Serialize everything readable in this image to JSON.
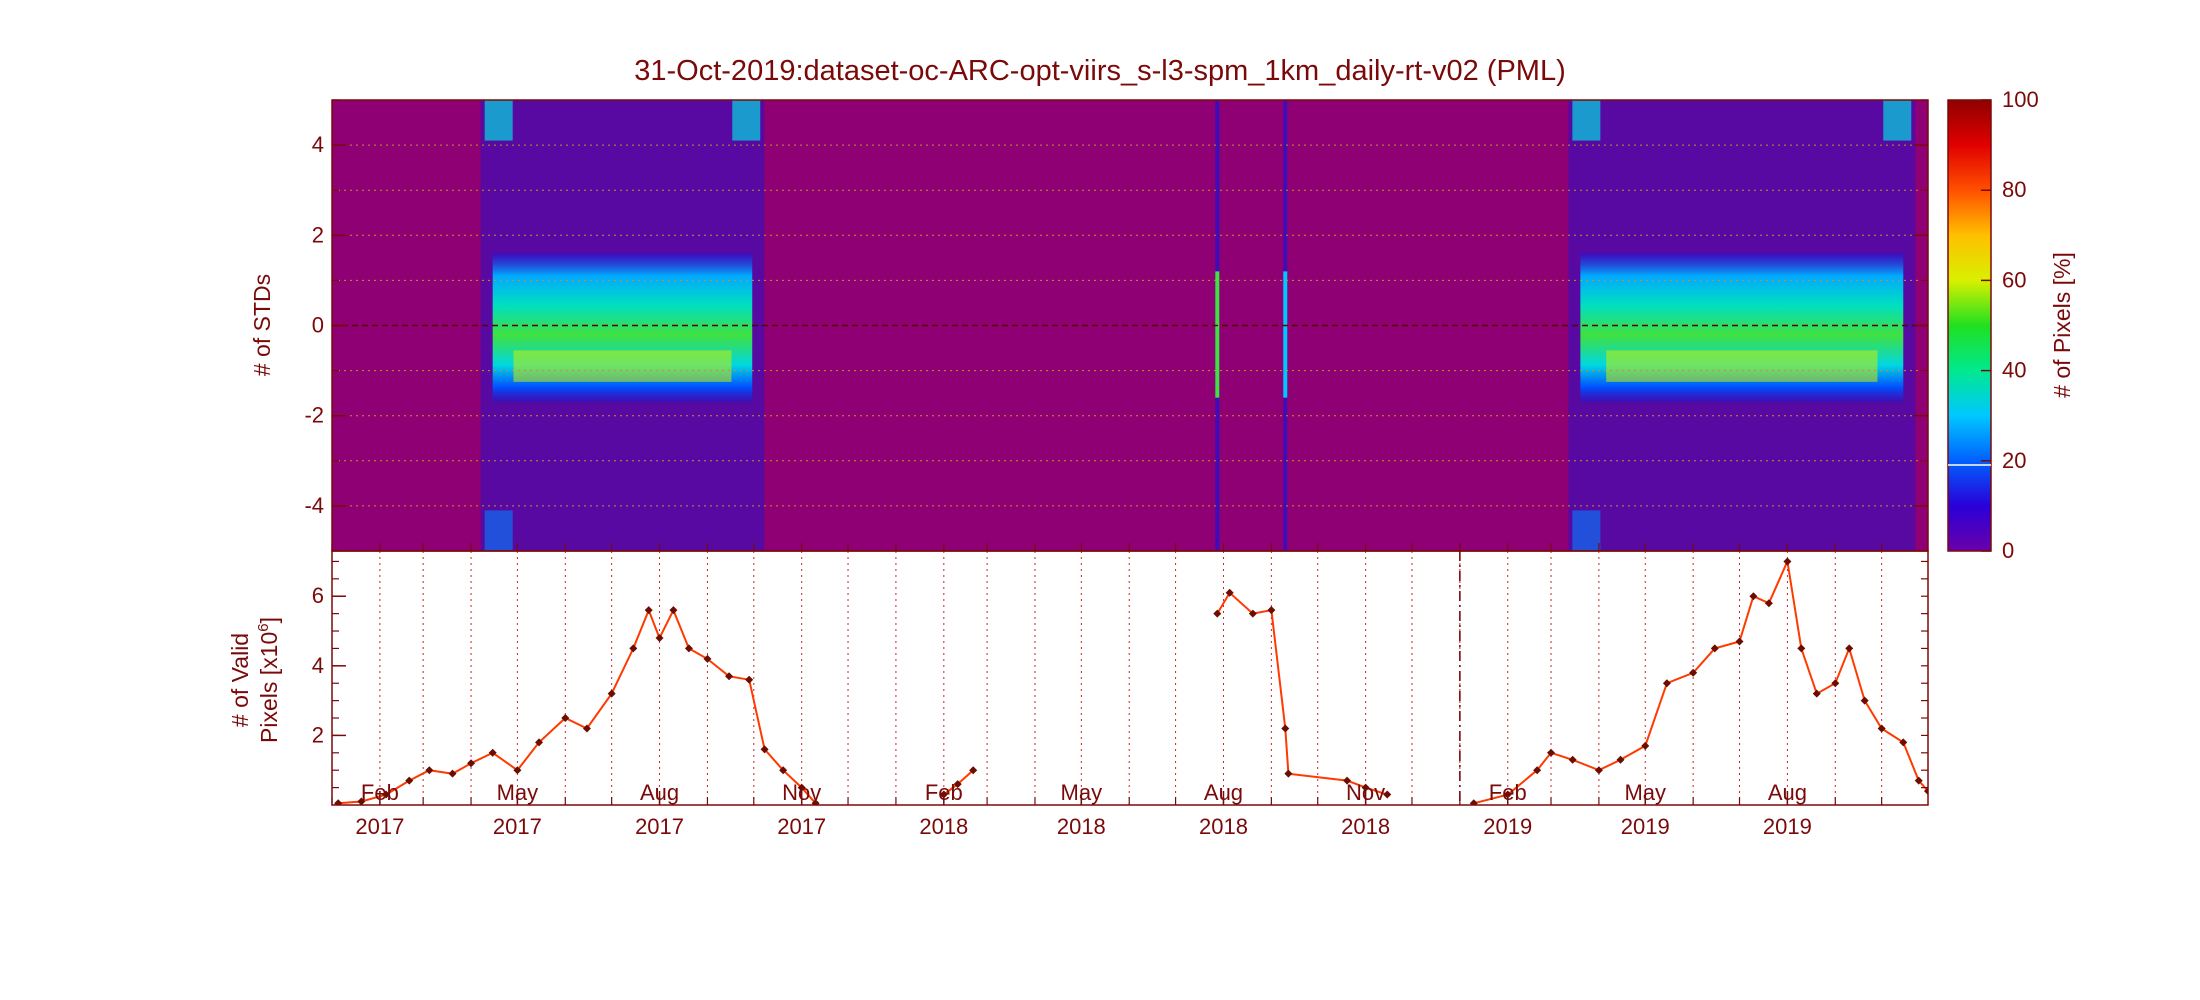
{
  "title": "31-Oct-2019:dataset-oc-ARC-opt-viirs_s-l3-spm_1km_daily-rt-v02 (PML)",
  "colors": {
    "text": "#7a0a0a",
    "background_fill": "#8e0073",
    "series_line": "#ff3a00",
    "series_marker": "#6b0d00",
    "guide_line": "#c8262a"
  },
  "chart_data": [
    {
      "type": "heatmap",
      "ylabel": "# of STDs",
      "ylim": [
        -5,
        5
      ],
      "yticks": [
        -4,
        -2,
        0,
        2,
        4
      ],
      "x_range": [
        "2017-01-01",
        "2019-10-31"
      ],
      "colorbar": {
        "label": "# of Pixels [%]",
        "range": [
          0,
          100
        ],
        "ticks": [
          0,
          20,
          40,
          60,
          80,
          100
        ],
        "colormap": "rainbow"
      },
      "mean_line_y": 0,
      "high_density_periods": [
        {
          "start": "2017-04-15",
          "end": "2017-09-30",
          "peak_std": -0.9,
          "peak_percent": 70
        },
        {
          "start": "2019-03-20",
          "end": "2019-10-15",
          "peak_std": -0.9,
          "peak_percent": 70
        }
      ],
      "isolated_columns": [
        {
          "date": "2018-07-28",
          "peak_percent": 50
        },
        {
          "date": "2018-09-10",
          "peak_percent": 30
        }
      ]
    },
    {
      "type": "line",
      "ylabel": "# of Valid Pixels [x10⁶]",
      "ylabel_lines": [
        "# of Valid",
        "Pixels [x10"
      ],
      "ylabel_exp": "6",
      "ylabel_close": "]",
      "ylim": [
        0,
        7.3
      ],
      "yticks": [
        2,
        4,
        6
      ],
      "x_tick_labels": [
        {
          "month": "Feb",
          "year": "2017",
          "date": "2017-02-01"
        },
        {
          "month": "May",
          "year": "2017",
          "date": "2017-05-01"
        },
        {
          "month": "Aug",
          "year": "2017",
          "date": "2017-08-01"
        },
        {
          "month": "Nov",
          "year": "2017",
          "date": "2017-11-01"
        },
        {
          "month": "Feb",
          "year": "2018",
          "date": "2018-02-01"
        },
        {
          "month": "May",
          "year": "2018",
          "date": "2018-05-01"
        },
        {
          "month": "Aug",
          "year": "2018",
          "date": "2018-08-01"
        },
        {
          "month": "Nov",
          "year": "2018",
          "date": "2018-11-01"
        },
        {
          "month": "Feb",
          "year": "2019",
          "date": "2019-02-01"
        },
        {
          "month": "May",
          "year": "2019",
          "date": "2019-05-01"
        },
        {
          "month": "Aug",
          "year": "2019",
          "date": "2019-08-01"
        }
      ],
      "marker_date": "2019-01-01",
      "series": [
        {
          "points": [
            [
              "2017-01-05",
              0.05
            ],
            [
              "2017-01-20",
              0.1
            ],
            [
              "2017-02-05",
              0.3
            ],
            [
              "2017-02-20",
              0.7
            ],
            [
              "2017-03-05",
              1.0
            ],
            [
              "2017-03-20",
              0.9
            ],
            [
              "2017-04-01",
              1.2
            ],
            [
              "2017-04-15",
              1.5
            ],
            [
              "2017-05-01",
              1.0
            ],
            [
              "2017-05-15",
              1.8
            ],
            [
              "2017-06-01",
              2.5
            ],
            [
              "2017-06-15",
              2.2
            ],
            [
              "2017-07-01",
              3.2
            ],
            [
              "2017-07-15",
              4.5
            ],
            [
              "2017-07-25",
              5.6
            ],
            [
              "2017-08-01",
              4.8
            ],
            [
              "2017-08-10",
              5.6
            ],
            [
              "2017-08-20",
              4.5
            ],
            [
              "2017-09-01",
              4.2
            ],
            [
              "2017-09-15",
              3.7
            ],
            [
              "2017-09-28",
              3.6
            ],
            [
              "2017-10-08",
              1.6
            ],
            [
              "2017-10-20",
              1.0
            ],
            [
              "2017-11-01",
              0.5
            ],
            [
              "2017-11-10",
              0.05
            ],
            [
              "2018-02-01",
              0.3
            ],
            [
              "2018-02-10",
              0.6
            ],
            [
              "2018-02-20",
              1.0
            ],
            [
              "2018-07-28",
              5.5
            ],
            [
              "2018-08-05",
              6.1
            ],
            [
              "2018-08-20",
              5.5
            ],
            [
              "2018-09-01",
              5.6
            ],
            [
              "2018-09-10",
              2.2
            ],
            [
              "2018-09-12",
              0.9
            ],
            [
              "2018-10-20",
              0.7
            ],
            [
              "2018-11-01",
              0.5
            ],
            [
              "2018-11-15",
              0.3
            ],
            [
              "2019-01-10",
              0.05
            ],
            [
              "2019-02-01",
              0.3
            ],
            [
              "2019-02-20",
              1.0
            ],
            [
              "2019-03-01",
              1.5
            ],
            [
              "2019-03-15",
              1.3
            ],
            [
              "2019-04-01",
              1.0
            ],
            [
              "2019-04-15",
              1.3
            ],
            [
              "2019-05-01",
              1.7
            ],
            [
              "2019-05-15",
              3.5
            ],
            [
              "2019-06-01",
              3.8
            ],
            [
              "2019-06-15",
              4.5
            ],
            [
              "2019-07-01",
              4.7
            ],
            [
              "2019-07-10",
              6.0
            ],
            [
              "2019-07-20",
              5.8
            ],
            [
              "2019-08-01",
              7.0
            ],
            [
              "2019-08-10",
              4.5
            ],
            [
              "2019-08-20",
              3.2
            ],
            [
              "2019-09-01",
              3.5
            ],
            [
              "2019-09-10",
              4.5
            ],
            [
              "2019-09-20",
              3.0
            ],
            [
              "2019-10-01",
              2.2
            ],
            [
              "2019-10-15",
              1.8
            ],
            [
              "2019-10-25",
              0.7
            ],
            [
              "2019-10-31",
              0.4
            ]
          ]
        }
      ]
    }
  ]
}
